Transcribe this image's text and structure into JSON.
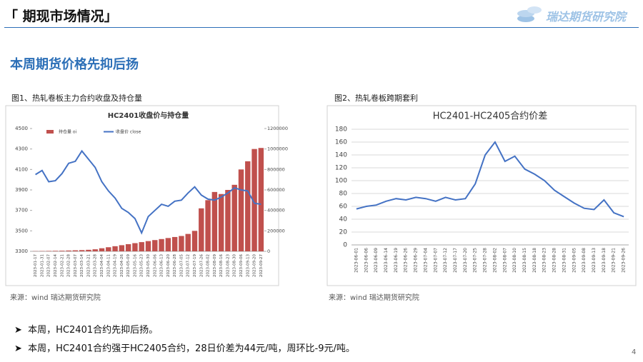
{
  "header": {
    "title": "「 期现市场情况」",
    "logo": "瑞达期货研究院"
  },
  "subtitle": "本周期货价格先抑后扬",
  "figures": [
    {
      "caption": "图1、热轧卷板主力合约收盘及持仓量",
      "source": "来源：wind   瑞达期货研究院"
    },
    {
      "caption": "图2、热轧卷板跨期套利",
      "source": "来源：wind   瑞达期货研究院"
    }
  ],
  "bullets": [
    "本周，HC2401合约先抑后扬。",
    "本周，HC2401合约强于HC2405合约，28日价差为44元/吨，周环比-9元/吨。"
  ],
  "page_number": "4",
  "chart_data": [
    {
      "type": "combo",
      "title": "HC2401收盘价与持仓量",
      "grid": false,
      "categories": [
        "2023-01-17",
        "2023-01-31",
        "2023-02-07",
        "2023-02-14",
        "2023-02-21",
        "2023-02-28",
        "2023-03-07",
        "2023-03-14",
        "2023-03-21",
        "2023-03-28",
        "2023-04-04",
        "2023-04-11",
        "2023-04-19",
        "2023-04-26",
        "2023-05-09",
        "2023-05-16",
        "2023-05-23",
        "2023-05-30",
        "2023-06-06",
        "2023-06-13",
        "2023-06-20",
        "2023-06-28",
        "2023-07-05",
        "2023-07-12",
        "2023-07-19",
        "2023-07-26",
        "2023-08-02",
        "2023-08-09",
        "2023-08-16",
        "2023-08-23",
        "2023-08-30",
        "2023-09-06",
        "2023-09-13",
        "2023-09-20",
        "2023-09-27"
      ],
      "ylim": [
        3300,
        4500
      ],
      "yticks": [
        3300,
        3500,
        3700,
        3900,
        4100,
        4300,
        4500
      ],
      "y2lim": [
        0,
        1200000
      ],
      "y2ticks": [
        0,
        200000,
        400000,
        600000,
        800000,
        1000000,
        1200000
      ],
      "series": [
        {
          "name": "持仓量 oi",
          "type": "bar",
          "axis": "y2",
          "color": "#c0504d",
          "values": [
            2000,
            3000,
            4000,
            5000,
            6000,
            8000,
            10000,
            12000,
            15000,
            20000,
            30000,
            40000,
            50000,
            60000,
            70000,
            80000,
            90000,
            100000,
            110000,
            120000,
            130000,
            140000,
            150000,
            170000,
            200000,
            420000,
            500000,
            580000,
            560000,
            600000,
            650000,
            800000,
            880000,
            1000000,
            1010000
          ]
        },
        {
          "name": "收盘价 close",
          "type": "line",
          "color": "#4472c4",
          "values": [
            4050,
            4090,
            3980,
            3990,
            4060,
            4160,
            4180,
            4280,
            4200,
            4120,
            3980,
            3890,
            3820,
            3720,
            3680,
            3620,
            3480,
            3640,
            3700,
            3760,
            3740,
            3790,
            3800,
            3870,
            3930,
            3850,
            3810,
            3800,
            3830,
            3870,
            3920,
            3900,
            3890,
            3770,
            3760
          ]
        }
      ]
    },
    {
      "type": "line",
      "title": "HC2401-HC2405合约价差",
      "grid": true,
      "categories": [
        "2023-06-01",
        "2023-06-06",
        "2023-06-09",
        "2023-06-14",
        "2023-06-19",
        "2023-06-26",
        "2023-06-29",
        "2023-07-04",
        "2023-07-07",
        "2023-07-12",
        "2023-07-17",
        "2023-07-20",
        "2023-07-25",
        "2023-07-28",
        "2023-08-02",
        "2023-08-07",
        "2023-08-10",
        "2023-08-15",
        "2023-08-18",
        "2023-08-23",
        "2023-08-28",
        "2023-08-31",
        "2023-09-05",
        "2023-09-08",
        "2023-09-13",
        "2023-09-18",
        "2023-09-21",
        "2023-09-26"
      ],
      "ylim": [
        0,
        180
      ],
      "yticks": [
        0,
        20,
        40,
        60,
        80,
        100,
        120,
        140,
        160,
        180
      ],
      "series": [
        {
          "type": "line",
          "color": "#4472c4",
          "values": [
            56,
            60,
            62,
            68,
            72,
            70,
            74,
            72,
            68,
            74,
            70,
            72,
            95,
            140,
            160,
            130,
            138,
            118,
            110,
            100,
            85,
            75,
            65,
            57,
            55,
            70,
            50,
            44
          ]
        }
      ]
    }
  ]
}
